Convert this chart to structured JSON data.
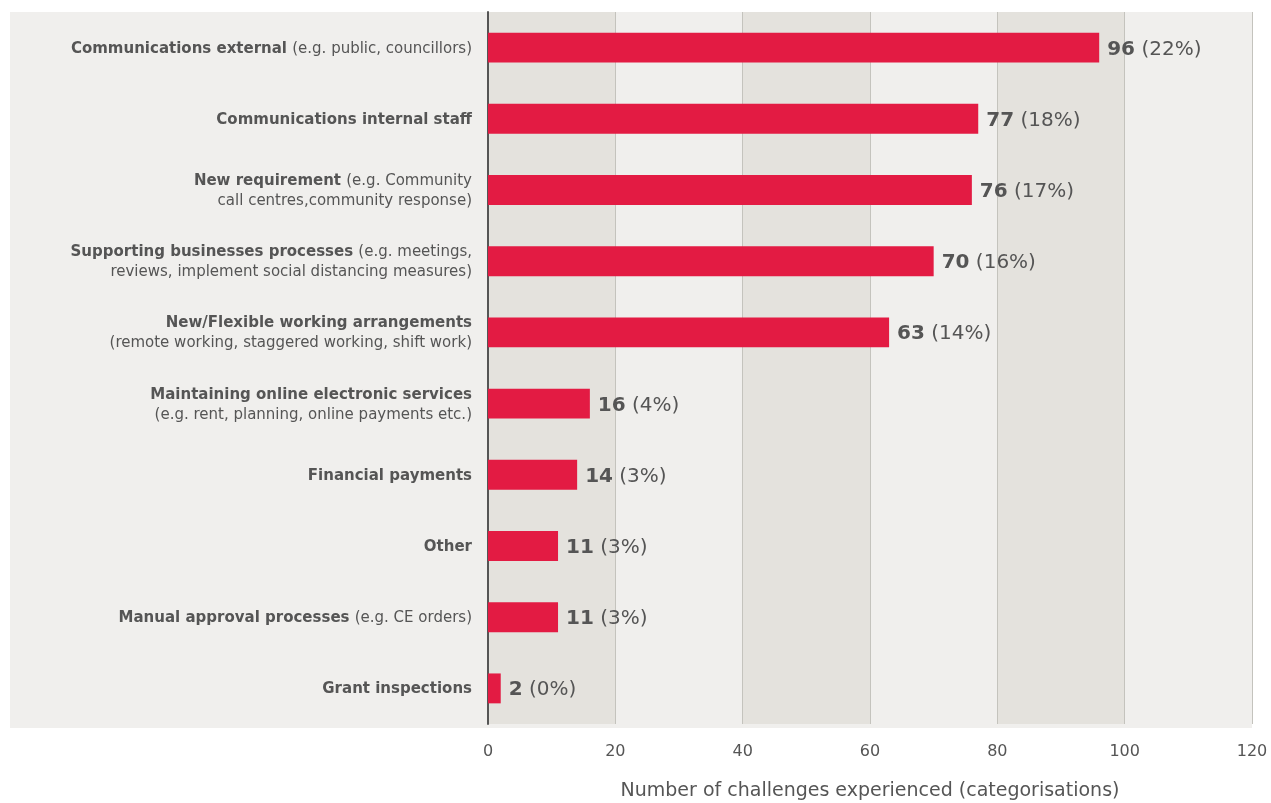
{
  "chart_data": {
    "type": "bar",
    "orientation": "horizontal",
    "xlabel": "Number of challenges experienced (categorisations)",
    "categories": [
      "Communications external (e.g. public, councillors)",
      "Communications internal staff",
      "New requirement (e.g. Community\ncall centres,community response)",
      "Supporting businesses processes (e.g. meetings,\nreviews, implement social distancing measures)",
      "New/Flexible working arrangements\n(remote working, staggered working, shift work)",
      "Maintaining online electronic services\n(e.g. rent, planning, online payments etc.)",
      "Financial payments",
      "Other",
      "Manual approval processes (e.g. CE orders)",
      "Grant inspections"
    ],
    "values": [
      96,
      77,
      76,
      70,
      63,
      16,
      14,
      11,
      11,
      2
    ],
    "value_labels": [
      "96 (22%)",
      "77 (18%)",
      "76 (17%)",
      "70 (16%)",
      "63 (14%)",
      "16 (4%)",
      "14 (3%)",
      "11 (3%)",
      "11 (3%)",
      "2 (0%)"
    ],
    "color": "#e31b43",
    "xlim": [
      0,
      120
    ],
    "xticks": [
      0,
      20,
      40,
      60,
      80,
      100,
      120
    ],
    "grid": "x"
  }
}
